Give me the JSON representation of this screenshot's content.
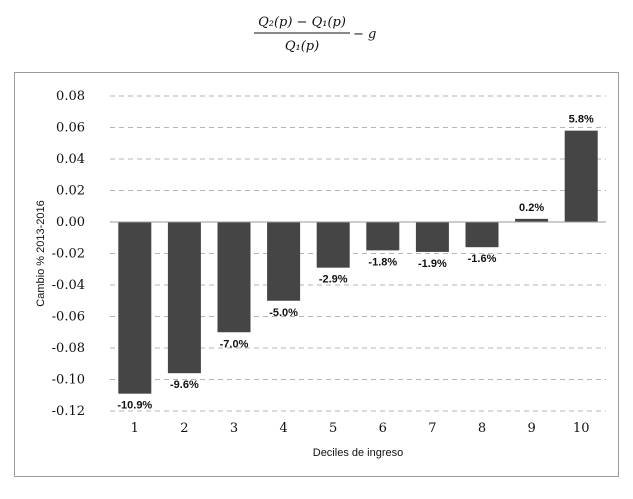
{
  "formula": {
    "numerator": "Q₂(p) − Q₁(p)",
    "denominator": "Q₁(p)",
    "tail": "− g"
  },
  "chart_data": {
    "type": "bar",
    "title": "",
    "xlabel": "Deciles de ingreso",
    "ylabel": "Cambio % 2013-2016",
    "categories": [
      "1",
      "2",
      "3",
      "4",
      "5",
      "6",
      "7",
      "8",
      "9",
      "10"
    ],
    "values": [
      -0.109,
      -0.096,
      -0.07,
      -0.05,
      -0.029,
      -0.018,
      -0.019,
      -0.016,
      0.002,
      0.058
    ],
    "data_labels": [
      "-10.9%",
      "-9.6%",
      "-7.0%",
      "-5.0%",
      "-2.9%",
      "-1.8%",
      "-1.9%",
      "-1.6%",
      "0.2%",
      "5.8%"
    ],
    "ylim": [
      -0.12,
      0.08
    ],
    "yticks": [
      0.08,
      0.06,
      0.04,
      0.02,
      0.0,
      -0.02,
      -0.04,
      -0.06,
      -0.08,
      -0.1,
      -0.12
    ],
    "ytick_labels": [
      "0.08",
      "0.06",
      "0.04",
      "0.02",
      "0.00",
      "-0.02",
      "-0.04",
      "-0.06",
      "-0.08",
      "-0.10",
      "-0.12"
    ],
    "grid": true,
    "legend": "none",
    "bar_color": "#454545"
  }
}
